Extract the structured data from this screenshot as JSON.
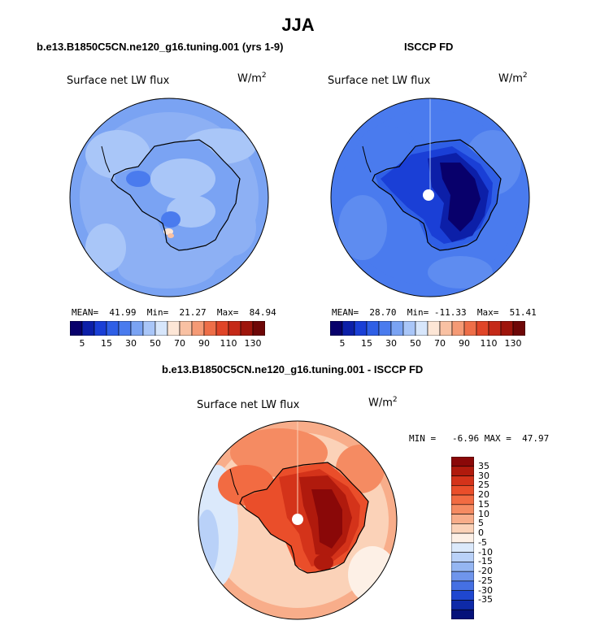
{
  "figure": {
    "title": "JJA",
    "units": "W/m2",
    "units_base": "W/m",
    "units_exp": "2",
    "plot_label": "Surface net LW flux"
  },
  "panels": {
    "model": {
      "title": "b.e13.B1850C5CN.ne120_g16.tuning.001 (yrs 1-9)",
      "mean_label": "MEAN=",
      "mean": "41.99",
      "min_label": "Min=",
      "min": "21.27",
      "max_label": "Max=",
      "max": "84.94"
    },
    "obs": {
      "title": "ISCCP FD",
      "mean_label": "MEAN=",
      "mean": "28.70",
      "min_label": "Min=",
      "min": "-11.33",
      "max_label": "Max=",
      "max": "51.41"
    },
    "diff": {
      "title": "b.e13.B1850C5CN.ne120_g16.tuning.001 - ISCCP FD",
      "min_label": "MIN =",
      "min": "-6.96",
      "max_label": "MAX =",
      "max": "47.97"
    }
  },
  "chart_data": [
    {
      "type": "heatmap",
      "name": "model-map",
      "projection": "south-polar-stereographic",
      "colorbar": {
        "orientation": "horizontal",
        "colors": [
          "#08006b",
          "#0c1fa8",
          "#1a3fd6",
          "#2f5fe6",
          "#4a7bee",
          "#7aa3f3",
          "#a9c6f8",
          "#d7e6fb",
          "#fde6d6",
          "#f9c1a3",
          "#f59a75",
          "#ee6e48",
          "#e04528",
          "#c52a18",
          "#9e150c",
          "#6e0707"
        ],
        "tick_labels": [
          "5",
          "15",
          "30",
          "50",
          "70",
          "90",
          "110",
          "130"
        ]
      }
    },
    {
      "type": "heatmap",
      "name": "obs-map",
      "projection": "south-polar-stereographic",
      "colorbar": {
        "orientation": "horizontal",
        "colors": [
          "#08006b",
          "#0c1fa8",
          "#1a3fd6",
          "#2f5fe6",
          "#4a7bee",
          "#7aa3f3",
          "#a9c6f8",
          "#d7e6fb",
          "#fde6d6",
          "#f9c1a3",
          "#f59a75",
          "#ee6e48",
          "#e04528",
          "#c52a18",
          "#9e150c",
          "#6e0707"
        ],
        "tick_labels": [
          "5",
          "15",
          "30",
          "50",
          "70",
          "90",
          "110",
          "130"
        ]
      }
    },
    {
      "type": "heatmap",
      "name": "diff-map",
      "projection": "south-polar-stereographic",
      "colorbar": {
        "orientation": "vertical",
        "colors": [
          "#8a0808",
          "#b01a0d",
          "#d4331a",
          "#ea4e2a",
          "#f26b42",
          "#f58b62",
          "#f8ad8a",
          "#fbd2b8",
          "#fdf0e6",
          "#dbe9fb",
          "#b9d1f8",
          "#95b6f2",
          "#6f95ec",
          "#4570e3",
          "#1f47d0",
          "#0e2aa8",
          "#05127a"
        ],
        "tick_labels": [
          "35",
          "30",
          "25",
          "20",
          "15",
          "10",
          "5",
          "0",
          "-5",
          "-10",
          "-15",
          "-20",
          "-25",
          "-30",
          "-35"
        ]
      }
    }
  ]
}
